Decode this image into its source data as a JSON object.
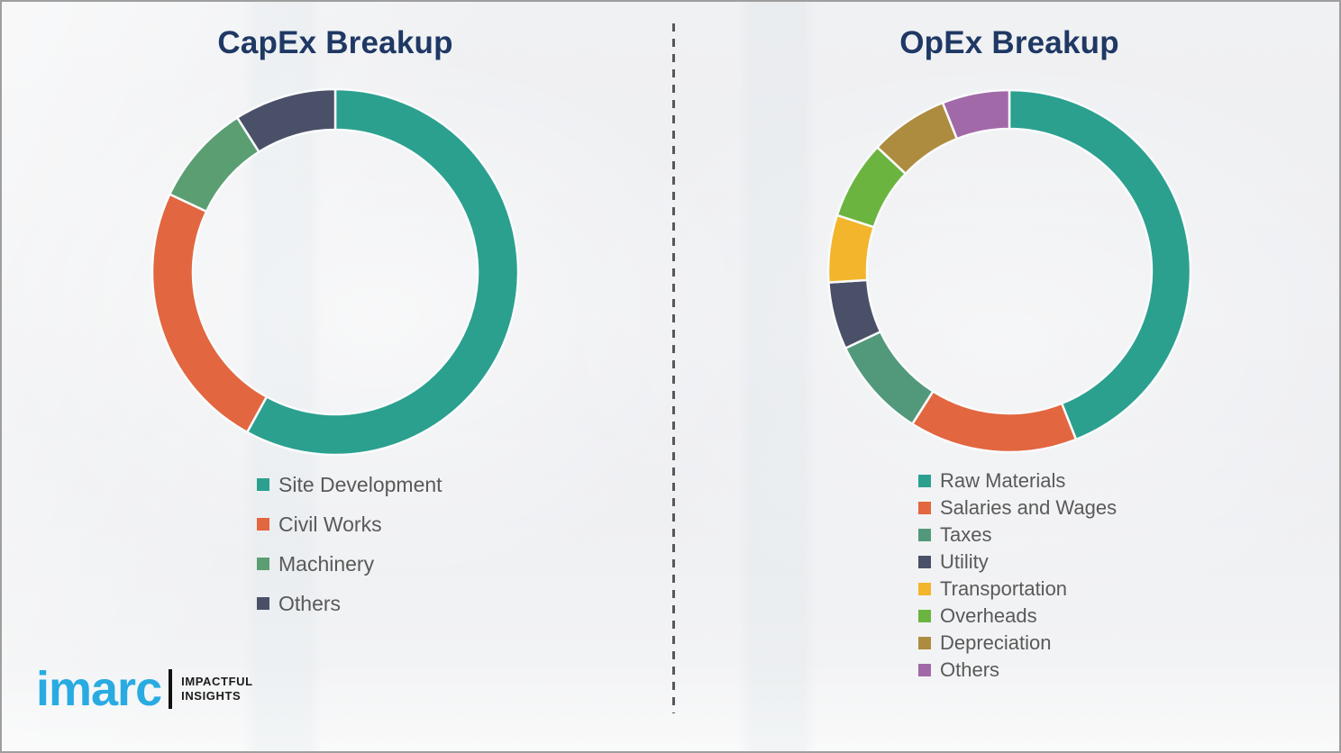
{
  "chart_data": [
    {
      "type": "pie",
      "donut": true,
      "title": "CapEx Breakup",
      "categories": [
        "Site Development",
        "Civil Works",
        "Machinery",
        "Others"
      ],
      "values": [
        58,
        24,
        9,
        9
      ],
      "unit": "percent-estimated-from-arc-angles",
      "colors": [
        "#2ba08f",
        "#e2663f",
        "#5b9e72",
        "#4b5069"
      ],
      "legend_position": "below-left",
      "title_color": "#1f3864"
    },
    {
      "type": "pie",
      "donut": true,
      "title": "OpEx Breakup",
      "categories": [
        "Raw Materials",
        "Salaries and Wages",
        "Taxes",
        "Utility",
        "Transportation",
        "Overheads",
        "Depreciation",
        "Others"
      ],
      "values": [
        44,
        15,
        9,
        6,
        6,
        7,
        7,
        6
      ],
      "unit": "percent-estimated-from-arc-angles",
      "colors": [
        "#2ba08f",
        "#e2663f",
        "#52997b",
        "#4b5069",
        "#f2b52b",
        "#6cb440",
        "#ad8c3f",
        "#a269a8"
      ],
      "legend_position": "below-left",
      "title_color": "#1f3864"
    }
  ],
  "logo": {
    "brand": "imarc",
    "brand_color": "#29abe2",
    "tagline_top": "IMPACTFUL",
    "tagline_bottom": "INSIGHTS"
  }
}
